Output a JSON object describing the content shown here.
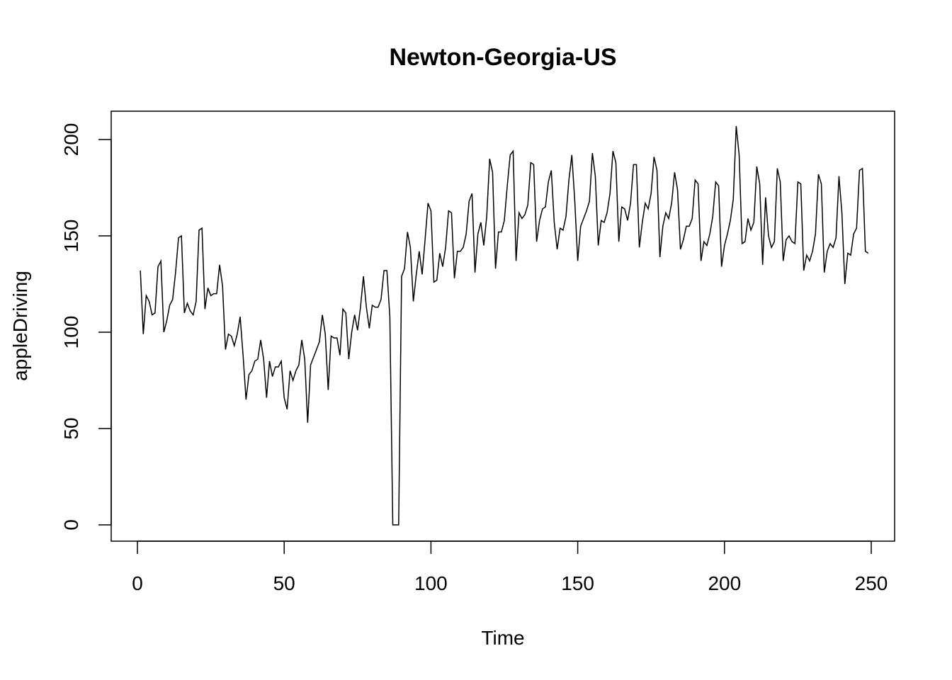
{
  "chart_data": {
    "type": "line",
    "title": "Newton-Georgia-US",
    "xlabel": "Time",
    "ylabel": "appleDriving",
    "xlim": [
      0,
      250
    ],
    "ylim": [
      0,
      207
    ],
    "xticks": [
      0,
      50,
      100,
      150,
      200,
      250
    ],
    "yticks": [
      0,
      50,
      100,
      150,
      200
    ],
    "grid": false,
    "legend": "none",
    "series": [
      {
        "color": "#000000",
        "x_start": 1,
        "values": [
          132,
          99,
          119,
          116,
          109,
          110,
          134,
          137,
          100,
          106,
          114,
          117,
          131,
          149,
          150,
          110,
          115,
          111,
          109,
          116,
          153,
          154,
          112,
          123,
          119,
          120,
          120,
          135,
          124,
          91,
          99,
          98,
          93,
          99,
          108,
          88,
          65,
          78,
          80,
          85,
          86,
          96,
          86,
          66,
          85,
          77,
          82,
          82,
          85,
          66,
          60,
          80,
          75,
          80,
          83,
          96,
          86,
          53,
          83,
          87,
          91,
          95,
          109,
          99,
          70,
          98,
          97,
          97,
          88,
          112,
          110,
          86,
          100,
          109,
          101,
          113,
          129,
          113,
          102,
          114,
          113,
          113,
          117,
          132,
          132,
          108,
          0,
          0,
          0,
          129,
          133,
          152,
          144,
          116,
          130,
          142,
          130,
          148,
          167,
          163,
          126,
          127,
          141,
          134,
          144,
          163,
          162,
          128,
          142,
          142,
          144,
          151,
          168,
          172,
          131,
          151,
          157,
          145,
          160,
          190,
          183,
          133,
          152,
          152,
          158,
          176,
          192,
          194,
          137,
          162,
          159,
          161,
          166,
          188,
          187,
          147,
          158,
          164,
          165,
          178,
          184,
          157,
          143,
          154,
          153,
          160,
          179,
          192,
          168,
          137,
          155,
          159,
          163,
          168,
          193,
          181,
          145,
          158,
          157,
          162,
          172,
          194,
          188,
          147,
          165,
          164,
          158,
          167,
          187,
          187,
          144,
          157,
          167,
          164,
          172,
          191,
          184,
          139,
          155,
          162,
          159,
          167,
          183,
          174,
          143,
          148,
          155,
          155,
          159,
          179,
          177,
          137,
          147,
          145,
          151,
          160,
          178,
          176,
          134,
          145,
          151,
          158,
          169,
          207,
          192,
          146,
          147,
          159,
          153,
          157,
          186,
          177,
          135,
          170,
          150,
          144,
          147,
          185,
          178,
          137,
          148,
          150,
          147,
          146,
          178,
          177,
          132,
          140,
          137,
          142,
          151,
          182,
          177,
          131,
          142,
          146,
          144,
          149,
          181,
          162,
          125,
          141,
          140,
          151,
          154,
          184,
          185,
          142,
          141
        ]
      }
    ]
  }
}
